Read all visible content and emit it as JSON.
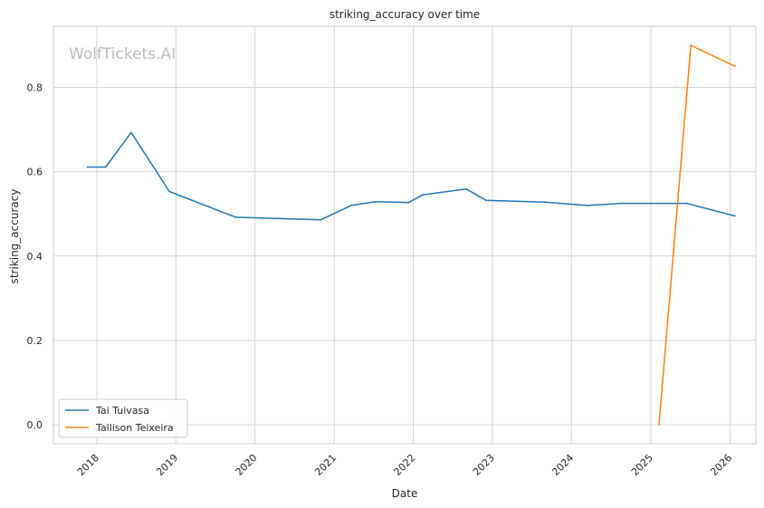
{
  "chart_data": {
    "type": "line",
    "title": "striking_accuracy over time",
    "xlabel": "Date",
    "ylabel": "striking_accuracy",
    "watermark": "WolfTickets.AI",
    "x_ticks": [
      "2018",
      "2019",
      "2020",
      "2021",
      "2022",
      "2023",
      "2024",
      "2025",
      "2026"
    ],
    "y_ticks": [
      "0.0",
      "0.2",
      "0.4",
      "0.6",
      "0.8"
    ],
    "xlim": [
      "2017-06-15",
      "2026-05-01"
    ],
    "ylim": [
      -0.045,
      0.945
    ],
    "grid": true,
    "legend_position": "lower-left",
    "series": [
      {
        "name": "Tai Tuivasa",
        "color": "#1f77b4",
        "points": [
          {
            "x": "2017-11-19",
            "y": 0.611
          },
          {
            "x": "2018-02-11",
            "y": 0.611
          },
          {
            "x": "2018-06-09",
            "y": 0.693
          },
          {
            "x": "2018-12-02",
            "y": 0.553
          },
          {
            "x": "2019-10-05",
            "y": 0.492
          },
          {
            "x": "2020-10-31",
            "y": 0.486
          },
          {
            "x": "2021-03-20",
            "y": 0.52
          },
          {
            "x": "2021-07-10",
            "y": 0.529
          },
          {
            "x": "2021-12-11",
            "y": 0.527
          },
          {
            "x": "2022-02-12",
            "y": 0.545
          },
          {
            "x": "2022-09-03",
            "y": 0.559
          },
          {
            "x": "2022-12-03",
            "y": 0.532
          },
          {
            "x": "2023-09-02",
            "y": 0.528
          },
          {
            "x": "2024-03-16",
            "y": 0.52
          },
          {
            "x": "2024-08-17",
            "y": 0.525
          },
          {
            "x": "2025-06-15",
            "y": 0.525
          },
          {
            "x": "2026-01-24",
            "y": 0.495
          }
        ]
      },
      {
        "name": "Tallison Teixeira",
        "color": "#ff7f0e",
        "points": [
          {
            "x": "2025-02-08",
            "y": 0.0
          },
          {
            "x": "2025-07-05",
            "y": 0.9
          },
          {
            "x": "2026-01-24",
            "y": 0.85
          }
        ]
      }
    ]
  }
}
